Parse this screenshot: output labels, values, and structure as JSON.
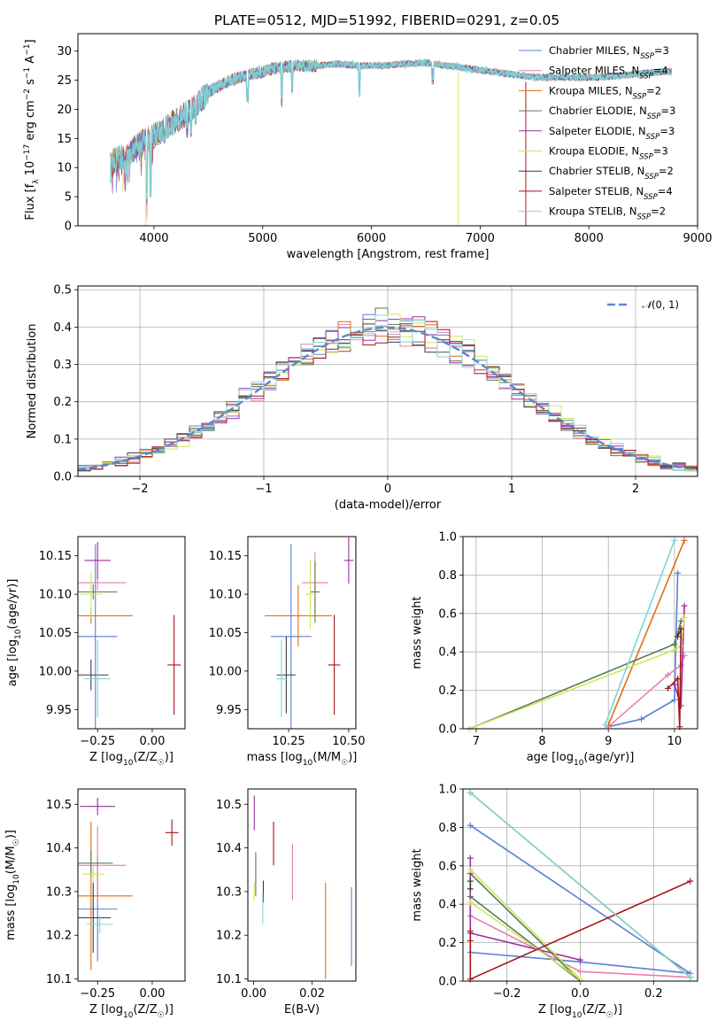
{
  "figure_title": "PLATE=0512, MJD=51992, FIBERID=0291, z=0.05",
  "series": [
    {
      "key": "cm",
      "name": "Chabrier MILES, N_SSP=3",
      "base": "Chabrier MILES, N",
      "sub": "SSP",
      "tail": "=3",
      "color": "#5b7fd4"
    },
    {
      "key": "sm",
      "name": "Salpeter MILES, N_SSP=4",
      "base": "Salpeter MILES, N",
      "sub": "SSP",
      "tail": "=4",
      "color": "#e77fb0"
    },
    {
      "key": "km",
      "name": "Kroupa MILES, N_SSP=2",
      "base": "Kroupa MILES, N",
      "sub": "SSP",
      "tail": "=2",
      "color": "#df6f14"
    },
    {
      "key": "ce",
      "name": "Chabrier ELODIE, N_SSP=3",
      "base": "Chabrier ELODIE, N",
      "sub": "SSP",
      "tail": "=3",
      "color": "#5a7d57"
    },
    {
      "key": "se",
      "name": "Salpeter ELODIE, N_SSP=3",
      "base": "Salpeter ELODIE, N",
      "sub": "SSP",
      "tail": "=3",
      "color": "#9a2fa0"
    },
    {
      "key": "ke",
      "name": "Kroupa ELODIE, N_SSP=3",
      "base": "Kroupa ELODIE, N",
      "sub": "SSP",
      "tail": "=3",
      "color": "#cde85a"
    },
    {
      "key": "cs",
      "name": "Chabrier STELIB, N_SSP=2",
      "base": "Chabrier STELIB, N",
      "sub": "SSP",
      "tail": "=2",
      "color": "#3d3d3d"
    },
    {
      "key": "ss",
      "name": "Salpeter STELIB, N_SSP=4",
      "base": "Salpeter STELIB, N",
      "sub": "SSP",
      "tail": "=4",
      "color": "#a3151b"
    },
    {
      "key": "ks",
      "name": "Kroupa STELIB, N_SSP=2",
      "base": "Kroupa STELIB, N",
      "sub": "SSP",
      "tail": "=2",
      "color": "#7fd4d8"
    }
  ],
  "chart_data": [
    {
      "id": "spectrum",
      "type": "line",
      "xlabel": "wavelength [Angstrom, rest frame]",
      "ylabel": "Flux [f_λ 10^-17 erg cm^-2 s^-1 A^-1]",
      "xlim": [
        3300,
        9000
      ],
      "ylim": [
        0,
        33
      ],
      "xticks": [
        4000,
        5000,
        6000,
        7000,
        8000,
        9000
      ],
      "yticks": [
        0,
        5,
        10,
        15,
        20,
        25,
        30
      ],
      "continuum": [
        [
          3600,
          11
        ],
        [
          3750,
          12
        ],
        [
          3850,
          14
        ],
        [
          3950,
          15
        ],
        [
          4050,
          16
        ],
        [
          4200,
          18
        ],
        [
          4350,
          20
        ],
        [
          4500,
          23
        ],
        [
          4700,
          25
        ],
        [
          4900,
          26
        ],
        [
          5100,
          27
        ],
        [
          5300,
          27.5
        ],
        [
          5500,
          27.5
        ],
        [
          5700,
          27.8
        ],
        [
          5900,
          27.5
        ],
        [
          6100,
          27.5
        ],
        [
          6300,
          27.8
        ],
        [
          6500,
          28
        ],
        [
          6700,
          27.5
        ],
        [
          6900,
          27
        ],
        [
          7100,
          26.5
        ],
        [
          7300,
          26
        ],
        [
          7500,
          25.5
        ],
        [
          7800,
          25.5
        ],
        [
          8100,
          25.5
        ],
        [
          8400,
          26
        ],
        [
          8700,
          26.5
        ]
      ],
      "absorption_lines": [
        [
          3934,
          4
        ],
        [
          3969,
          5
        ],
        [
          4101,
          14
        ],
        [
          4226,
          16
        ],
        [
          4304,
          15
        ],
        [
          4340,
          15
        ],
        [
          4383,
          17
        ],
        [
          4861,
          21
        ],
        [
          5175,
          20
        ],
        [
          5270,
          22
        ],
        [
          5890,
          22
        ],
        [
          6563,
          24
        ]
      ],
      "dips": [
        {
          "x": 3925,
          "y": 0,
          "series": "ke"
        },
        {
          "x": 6800,
          "y": 0,
          "series": "ke"
        },
        {
          "x": 7420,
          "y": 0,
          "series": "ss"
        }
      ],
      "legend_loc": "right"
    },
    {
      "id": "residuals",
      "type": "histogram",
      "xlabel": "(data-model)/error",
      "ylabel": "Normed distribution",
      "xlim": [
        -2.5,
        2.5
      ],
      "ylim": [
        0,
        0.51
      ],
      "xticks": [
        -2,
        -1,
        0,
        1,
        2
      ],
      "yticks": [
        0.0,
        0.1,
        0.2,
        0.3,
        0.4,
        0.5
      ],
      "bin_width": 0.1,
      "reference": {
        "label": "N(0,1)",
        "color": "#5b87d0"
      },
      "grid": true,
      "legend_loc": "top-right"
    },
    {
      "id": "age_vs_Z",
      "type": "errorbar",
      "xlabel": "Z [log10(Z/Z☉)]",
      "ylabel": "age  [log10(age/yr)]",
      "xlim": [
        -0.34,
        0.15
      ],
      "ylim": [
        9.925,
        10.175
      ],
      "xticks": [
        -0.25,
        0.0
      ],
      "yticks": [
        9.95,
        10.0,
        10.05,
        10.1,
        10.15
      ],
      "points": [
        {
          "series": "cm",
          "x": -0.26,
          "xerr": 0.1,
          "y": 10.045,
          "yerr": 0.12
        },
        {
          "series": "sm",
          "x": -0.25,
          "xerr": 0.13,
          "y": 10.115,
          "yerr": 0.01
        },
        {
          "series": "km",
          "x": -0.28,
          "xerr": 0.19,
          "y": 10.072,
          "yerr": 0.01
        },
        {
          "series": "ce",
          "x": -0.27,
          "xerr": 0.11,
          "y": 10.103,
          "yerr": 0.01
        },
        {
          "series": "se",
          "x": -0.25,
          "xerr": 0.06,
          "y": 10.144,
          "yerr": 0.024
        },
        {
          "series": "ke",
          "x": -0.28,
          "xerr": 0.05,
          "y": 10.1,
          "yerr": 0.03
        },
        {
          "series": "cs",
          "x": -0.28,
          "xerr": 0.08,
          "y": 9.995,
          "yerr": 0.02
        },
        {
          "series": "ss",
          "x": 0.1,
          "xerr": 0.03,
          "y": 10.008,
          "yerr": 0.065
        },
        {
          "series": "ks",
          "x": -0.25,
          "xerr": 0.06,
          "y": 9.99,
          "yerr": 0.05
        }
      ]
    },
    {
      "id": "age_vs_mass",
      "type": "errorbar",
      "xlabel": "mass [log10(M/M☉)]",
      "ylabel": "",
      "xlim": [
        10.08,
        10.53
      ],
      "ylim": [
        9.925,
        10.175
      ],
      "xticks": [
        10.25,
        10.5
      ],
      "yticks": [
        9.95,
        10.0,
        10.05,
        10.1,
        10.15
      ],
      "points": [
        {
          "series": "cm",
          "x": 10.26,
          "xerr": 0.085,
          "y": 10.045,
          "yerr": 0.12
        },
        {
          "series": "sm",
          "x": 10.36,
          "xerr": 0.055,
          "y": 10.115,
          "yerr": 0.04
        },
        {
          "series": "km",
          "x": 10.29,
          "xerr": 0.14,
          "y": 10.072,
          "yerr": 0.04
        },
        {
          "series": "ce",
          "x": 10.36,
          "xerr": 0.02,
          "y": 10.103,
          "yerr": 0.04
        },
        {
          "series": "se",
          "x": 10.5,
          "xerr": 0.02,
          "y": 10.144,
          "yerr": 0.03
        },
        {
          "series": "ke",
          "x": 10.34,
          "xerr": 0.02,
          "y": 10.1,
          "yerr": 0.045
        },
        {
          "series": "cs",
          "x": 10.24,
          "xerr": 0.04,
          "y": 9.995,
          "yerr": 0.05
        },
        {
          "series": "ss",
          "x": 10.44,
          "xerr": 0.025,
          "y": 10.008,
          "yerr": 0.065
        },
        {
          "series": "ks",
          "x": 10.22,
          "xerr": 0.02,
          "y": 9.99,
          "yerr": 0.05
        }
      ]
    },
    {
      "id": "mass_weight_vs_age",
      "type": "line",
      "xlabel": "age  [log10(age/yr)]",
      "ylabel": "mass weight",
      "xlim": [
        6.8,
        10.35
      ],
      "ylim": [
        0,
        1
      ],
      "xticks": [
        7,
        8,
        9,
        10
      ],
      "yticks": [
        0.0,
        0.2,
        0.4,
        0.6,
        0.8,
        1.0
      ],
      "grid": true,
      "lines": [
        {
          "series": "cm",
          "points": [
            [
              9.0,
              0.01
            ],
            [
              9.5,
              0.05
            ],
            [
              10.0,
              0.15
            ],
            [
              10.05,
              0.81
            ]
          ]
        },
        {
          "series": "sm",
          "points": [
            [
              9.0,
              0.01
            ],
            [
              9.9,
              0.28
            ],
            [
              10.1,
              0.33
            ],
            [
              10.15,
              0.38
            ]
          ]
        },
        {
          "series": "km",
          "points": [
            [
              9.0,
              0.02
            ],
            [
              10.15,
              0.98
            ]
          ]
        },
        {
          "series": "ce",
          "points": [
            [
              6.9,
              0.0
            ],
            [
              10.0,
              0.44
            ],
            [
              10.1,
              0.56
            ]
          ]
        },
        {
          "series": "se",
          "points": [
            [
              10.0,
              0.23
            ],
            [
              10.1,
              0.12
            ],
            [
              10.15,
              0.64
            ]
          ]
        },
        {
          "series": "ke",
          "points": [
            [
              6.9,
              0.0
            ],
            [
              10.0,
              0.41
            ],
            [
              10.1,
              0.43
            ],
            [
              10.15,
              0.58
            ]
          ]
        },
        {
          "series": "cs",
          "points": [
            [
              10.05,
              0.48
            ],
            [
              10.1,
              0.52
            ]
          ]
        },
        {
          "series": "ss",
          "points": [
            [
              9.9,
              0.21
            ],
            [
              10.05,
              0.26
            ],
            [
              10.08,
              0.01
            ],
            [
              10.1,
              0.52
            ]
          ]
        },
        {
          "series": "ks",
          "points": [
            [
              8.95,
              0.02
            ],
            [
              10.0,
              0.98
            ]
          ]
        }
      ]
    },
    {
      "id": "mass_vs_Z",
      "type": "errorbar",
      "xlabel": "Z [log10(Z/Z☉)]",
      "ylabel": "mass [log10(M/M☉)]",
      "xlim": [
        -0.34,
        0.15
      ],
      "ylim": [
        10.095,
        10.535
      ],
      "xticks": [
        -0.25,
        0.0
      ],
      "yticks": [
        10.1,
        10.2,
        10.3,
        10.4,
        10.5
      ],
      "points": [
        {
          "series": "cm",
          "x": -0.25,
          "xerr": 0.09,
          "y": 10.26,
          "yerr": 0.12
        },
        {
          "series": "sm",
          "x": -0.25,
          "xerr": 0.13,
          "y": 10.36,
          "yerr": 0.09
        },
        {
          "series": "km",
          "x": -0.28,
          "xerr": 0.19,
          "y": 10.29,
          "yerr": 0.17
        },
        {
          "series": "ce",
          "x": -0.28,
          "xerr": 0.1,
          "y": 10.365,
          "yerr": 0.03
        },
        {
          "series": "se",
          "x": -0.25,
          "xerr": 0.08,
          "y": 10.495,
          "yerr": 0.02
        },
        {
          "series": "ke",
          "x": -0.27,
          "xerr": 0.05,
          "y": 10.34,
          "yerr": 0.02
        },
        {
          "series": "cs",
          "x": -0.27,
          "xerr": 0.08,
          "y": 10.24,
          "yerr": 0.08
        },
        {
          "series": "ss",
          "x": 0.09,
          "xerr": 0.03,
          "y": 10.435,
          "yerr": 0.03
        },
        {
          "series": "ks",
          "x": -0.24,
          "xerr": 0.06,
          "y": 10.225,
          "yerr": 0.02
        }
      ]
    },
    {
      "id": "mass_vs_EBV",
      "type": "errorbar",
      "xlabel": "E(B-V)",
      "ylabel": "",
      "xlim": [
        -0.002,
        0.035
      ],
      "ylim": [
        10.095,
        10.535
      ],
      "xticks": [
        0.0,
        0.02
      ],
      "yticks": [
        10.1,
        10.2,
        10.3,
        10.4,
        10.5
      ],
      "points": [
        {
          "series": "cm",
          "x": 0.0335,
          "xerr": 0,
          "y": 10.22,
          "yerr": 0.09
        },
        {
          "series": "sm",
          "x": 0.0133,
          "xerr": 0,
          "y": 10.345,
          "yerr": 0.065
        },
        {
          "series": "km",
          "x": 0.0246,
          "xerr": 0,
          "y": 10.21,
          "yerr": 0.11
        },
        {
          "series": "ce",
          "x": 0.0007,
          "xerr": 0,
          "y": 10.34,
          "yerr": 0.05
        },
        {
          "series": "se",
          "x": 0.0002,
          "xerr": 0,
          "y": 10.48,
          "yerr": 0.04
        },
        {
          "series": "ke",
          "x": 0.0002,
          "xerr": 0,
          "y": 10.3,
          "yerr": 0.02
        },
        {
          "series": "cs",
          "x": 0.0033,
          "xerr": 0,
          "y": 10.3,
          "yerr": 0.025
        },
        {
          "series": "ss",
          "x": 0.0068,
          "xerr": 0,
          "y": 10.41,
          "yerr": 0.05
        },
        {
          "series": "ks",
          "x": 0.0031,
          "xerr": 0,
          "y": 10.26,
          "yerr": 0.035
        }
      ]
    },
    {
      "id": "mass_weight_vs_Z",
      "type": "line",
      "xlabel": "Z [log10(Z/Z☉)]",
      "ylabel": "mass weight",
      "xlim": [
        -0.32,
        0.32
      ],
      "ylim": [
        0,
        1
      ],
      "xticks": [
        -0.2,
        0.0,
        0.2
      ],
      "yticks": [
        0.0,
        0.2,
        0.4,
        0.6,
        0.8,
        1.0
      ],
      "grid": true,
      "lines": [
        {
          "series": "cm",
          "points": [
            [
              -0.3,
              0.15
            ],
            [
              0.0,
              0.1
            ],
            [
              0.3,
              0.04
            ],
            [
              -0.3,
              0.81
            ]
          ]
        },
        {
          "series": "sm",
          "points": [
            [
              -0.3,
              0.34
            ],
            [
              0.0,
              0.05
            ],
            [
              0.3,
              0.02
            ]
          ]
        },
        {
          "series": "km",
          "points": [
            [
              -0.3,
              0.98
            ],
            [
              0.3,
              0.02
            ]
          ]
        },
        {
          "series": "ce",
          "points": [
            [
              -0.3,
              0.56
            ],
            [
              0.0,
              0.0
            ],
            [
              -0.3,
              0.44
            ]
          ]
        },
        {
          "series": "se",
          "points": [
            [
              -0.3,
              0.64
            ],
            [
              -0.3,
              0.25
            ],
            [
              0.0,
              0.11
            ]
          ]
        },
        {
          "series": "ke",
          "points": [
            [
              -0.3,
              0.58
            ],
            [
              0.0,
              0.01
            ],
            [
              -0.3,
              0.41
            ]
          ]
        },
        {
          "series": "cs",
          "points": [
            [
              -0.3,
              0.48
            ],
            [
              -0.3,
              0.52
            ]
          ]
        },
        {
          "series": "ss",
          "points": [
            [
              -0.3,
              0.21
            ],
            [
              -0.3,
              0.26
            ],
            [
              -0.3,
              0.01
            ],
            [
              0.3,
              0.52
            ]
          ]
        },
        {
          "series": "ks",
          "points": [
            [
              -0.3,
              0.98
            ],
            [
              0.3,
              0.02
            ]
          ]
        }
      ]
    }
  ]
}
